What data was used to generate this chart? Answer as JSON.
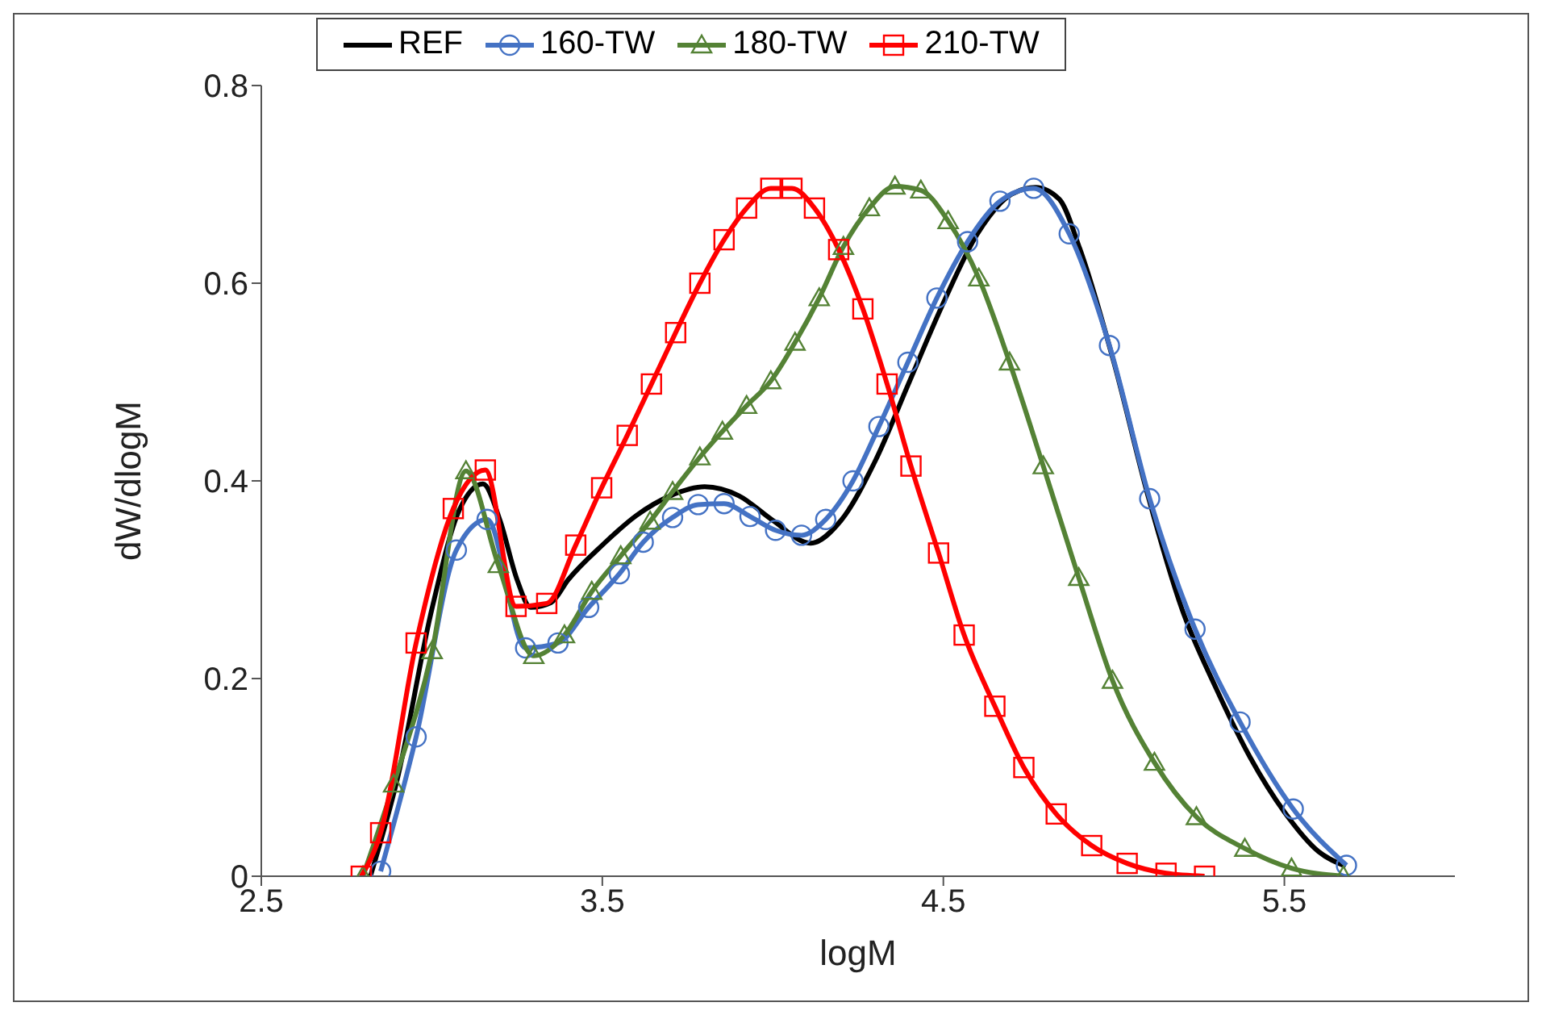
{
  "chart_data": {
    "type": "line",
    "xlabel": "logM",
    "ylabel": "dW/dlogM",
    "xlim": [
      2.5,
      6.0
    ],
    "xticks": [
      2.5,
      3.5,
      4.5,
      5.5
    ],
    "ylim": [
      0,
      0.8
    ],
    "yticks": [
      0,
      0.2,
      0.4,
      0.6,
      0.8
    ],
    "grid": false,
    "legend": "top",
    "series": [
      {
        "name": "REF",
        "color": "#000000",
        "marker": "none",
        "x": [
          2.82,
          2.9,
          3.0,
          3.08,
          3.15,
          3.2,
          3.25,
          3.29,
          3.35,
          3.4,
          3.5,
          3.6,
          3.7,
          3.8,
          3.9,
          4.0,
          4.11,
          4.2,
          4.3,
          4.4,
          4.5,
          4.6,
          4.7,
          4.77,
          4.84,
          4.9,
          5.0,
          5.1,
          5.2,
          5.3,
          5.4,
          5.5,
          5.6,
          5.68
        ],
        "values": [
          0,
          0.1,
          0.27,
          0.37,
          0.397,
          0.36,
          0.3,
          0.272,
          0.277,
          0.3,
          0.335,
          0.365,
          0.385,
          0.394,
          0.385,
          0.36,
          0.337,
          0.36,
          0.42,
          0.5,
          0.58,
          0.65,
          0.69,
          0.697,
          0.685,
          0.635,
          0.52,
          0.385,
          0.27,
          0.19,
          0.12,
          0.065,
          0.025,
          0.01
        ]
      },
      {
        "name": "160-TW",
        "color": "#4472c4",
        "marker": "circle",
        "x": [
          2.85,
          2.954,
          3.072,
          3.162,
          3.275,
          3.37,
          3.46,
          3.55,
          3.62,
          3.706,
          3.781,
          3.857,
          3.933,
          4.008,
          4.084,
          4.155,
          4.235,
          4.311,
          4.396,
          4.481,
          4.571,
          4.666,
          4.765,
          4.869,
          4.987,
          5.105,
          5.238,
          5.37,
          5.526,
          5.682
        ],
        "values": [
          0.005,
          0.141,
          0.33,
          0.361,
          0.231,
          0.236,
          0.272,
          0.306,
          0.338,
          0.363,
          0.376,
          0.377,
          0.364,
          0.35,
          0.345,
          0.361,
          0.4,
          0.455,
          0.52,
          0.585,
          0.642,
          0.683,
          0.696,
          0.65,
          0.537,
          0.382,
          0.25,
          0.156,
          0.068,
          0.011
        ]
      },
      {
        "name": "180-TW",
        "color": "#548235",
        "marker": "triangle",
        "x": [
          2.798,
          2.888,
          3.001,
          3.1,
          3.195,
          3.299,
          3.389,
          3.469,
          3.554,
          3.64,
          3.706,
          3.786,
          3.852,
          3.923,
          3.994,
          4.065,
          4.136,
          4.207,
          4.283,
          4.358,
          4.434,
          4.514,
          4.604,
          4.694,
          4.793,
          4.897,
          4.996,
          5.119,
          5.242,
          5.384,
          5.521,
          5.673
        ],
        "values": [
          0,
          0.093,
          0.228,
          0.41,
          0.315,
          0.223,
          0.244,
          0.288,
          0.324,
          0.359,
          0.389,
          0.424,
          0.45,
          0.476,
          0.501,
          0.54,
          0.585,
          0.637,
          0.676,
          0.698,
          0.694,
          0.663,
          0.605,
          0.52,
          0.415,
          0.302,
          0.198,
          0.115,
          0.06,
          0.028,
          0.008,
          0
        ]
      },
      {
        "name": "210-TW",
        "color": "#ff0000",
        "marker": "square",
        "x": [
          2.793,
          2.85,
          2.954,
          3.063,
          3.157,
          3.247,
          3.337,
          3.422,
          3.498,
          3.573,
          3.644,
          3.715,
          3.786,
          3.857,
          3.923,
          3.994,
          4.056,
          4.122,
          4.193,
          4.264,
          4.335,
          4.405,
          4.486,
          4.561,
          4.651,
          4.736,
          4.831,
          4.935,
          5.039,
          5.153,
          5.266
        ],
        "values": [
          0,
          0.044,
          0.236,
          0.372,
          0.411,
          0.273,
          0.276,
          0.335,
          0.393,
          0.446,
          0.498,
          0.55,
          0.6,
          0.644,
          0.676,
          0.696,
          0.696,
          0.676,
          0.634,
          0.574,
          0.498,
          0.415,
          0.327,
          0.244,
          0.172,
          0.11,
          0.063,
          0.031,
          0.013,
          0.003,
          0
        ]
      }
    ]
  }
}
